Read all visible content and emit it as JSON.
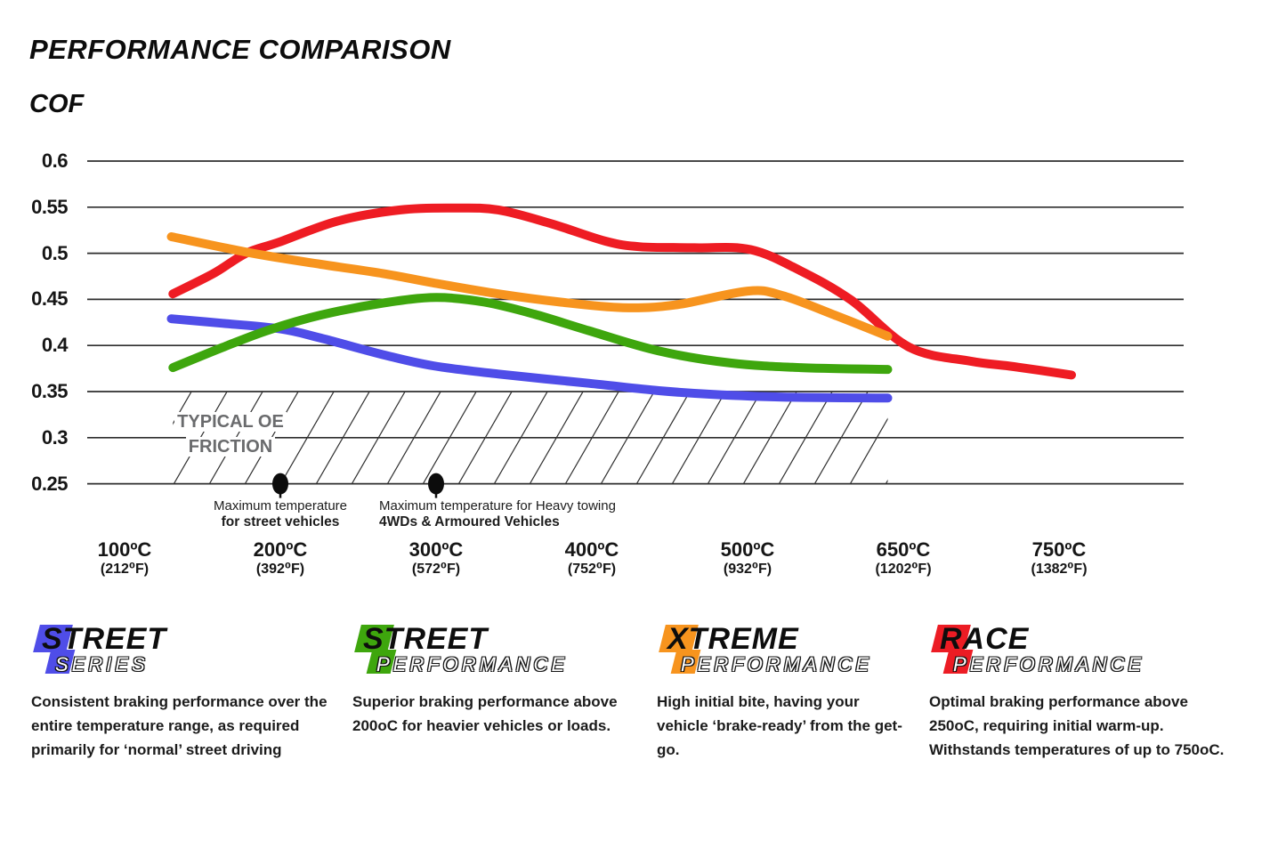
{
  "header": {
    "title": "PERFORMANCE COMPARISON",
    "axis_label": "COF"
  },
  "chart_data": {
    "type": "line",
    "title": "PERFORMANCE COMPARISON",
    "ylabel": "COF",
    "ylim": [
      0.25,
      0.6
    ],
    "grid": "horizontal",
    "legend_position": "bottom",
    "y_ticks": [
      {
        "label": "0.6",
        "value": 0.6
      },
      {
        "label": "0.55",
        "value": 0.55
      },
      {
        "label": "0.5",
        "value": 0.5
      },
      {
        "label": "0.45",
        "value": 0.45
      },
      {
        "label": "0.4",
        "value": 0.4
      },
      {
        "label": "0.35",
        "value": 0.35
      },
      {
        "label": "0.3",
        "value": 0.3
      },
      {
        "label": "0.25",
        "value": 0.25
      }
    ],
    "x_ticks": [
      {
        "temp": 100,
        "label": "100ºC",
        "sublabel": "(212⁰F)"
      },
      {
        "temp": 200,
        "label": "200ºC",
        "sublabel": "(392⁰F)"
      },
      {
        "temp": 300,
        "label": "300ºC",
        "sublabel": "(572⁰F)"
      },
      {
        "temp": 400,
        "label": "400ºC",
        "sublabel": "(752⁰F)"
      },
      {
        "temp": 500,
        "label": "500ºC",
        "sublabel": "(932⁰F)"
      },
      {
        "temp": 650,
        "label": "650ºC",
        "sublabel": "(1202⁰F)"
      },
      {
        "temp": 750,
        "label": "750ºC",
        "sublabel": "(1382⁰F)"
      }
    ],
    "series": [
      {
        "name": "Race Performance",
        "color": "#EE1C23",
        "points": [
          [
            131,
            0.456
          ],
          [
            157,
            0.478
          ],
          [
            178,
            0.5
          ],
          [
            199,
            0.512
          ],
          [
            237,
            0.535
          ],
          [
            277,
            0.547
          ],
          [
            311,
            0.549
          ],
          [
            340,
            0.547
          ],
          [
            374,
            0.532
          ],
          [
            409,
            0.513
          ],
          [
            431,
            0.507
          ],
          [
            466,
            0.506
          ],
          [
            503,
            0.504
          ],
          [
            551,
            0.481
          ],
          [
            600,
            0.449
          ],
          [
            654,
            0.398
          ],
          [
            693,
            0.383
          ],
          [
            721,
            0.377
          ],
          [
            758,
            0.368
          ]
        ]
      },
      {
        "name": "Street Series",
        "color": "#4F4DE8",
        "points": [
          [
            130,
            0.429
          ],
          [
            163,
            0.424
          ],
          [
            200,
            0.418
          ],
          [
            226,
            0.408
          ],
          [
            266,
            0.39
          ],
          [
            298,
            0.378
          ],
          [
            340,
            0.369
          ],
          [
            398,
            0.359
          ],
          [
            443,
            0.351
          ],
          [
            477,
            0.347
          ],
          [
            534,
            0.344
          ],
          [
            635,
            0.343
          ]
        ]
      },
      {
        "name": "Street Performance",
        "color": "#3EA60D",
        "points": [
          [
            131,
            0.376
          ],
          [
            163,
            0.398
          ],
          [
            193,
            0.417
          ],
          [
            226,
            0.433
          ],
          [
            266,
            0.446
          ],
          [
            300,
            0.452
          ],
          [
            331,
            0.447
          ],
          [
            363,
            0.434
          ],
          [
            398,
            0.416
          ],
          [
            443,
            0.394
          ],
          [
            489,
            0.381
          ],
          [
            551,
            0.376
          ],
          [
            635,
            0.374
          ]
        ]
      },
      {
        "name": "Xtreme Performance",
        "color": "#F7941E",
        "points": [
          [
            130,
            0.518
          ],
          [
            182,
            0.5
          ],
          [
            226,
            0.488
          ],
          [
            266,
            0.478
          ],
          [
            298,
            0.468
          ],
          [
            340,
            0.456
          ],
          [
            380,
            0.447
          ],
          [
            420,
            0.441
          ],
          [
            454,
            0.444
          ],
          [
            500,
            0.459
          ],
          [
            534,
            0.454
          ],
          [
            586,
            0.432
          ],
          [
            635,
            0.41
          ]
        ]
      }
    ],
    "oe_region": {
      "label_line1": "TYPICAL OE",
      "label_line2": "FRICTION",
      "temp_start": 131,
      "temp_end": 635,
      "cof_min": 0.25,
      "cof_max": 0.35
    },
    "markers": [
      {
        "temp": 200,
        "cof": 0.25,
        "label_line1": "Maximum temperature",
        "label_line2": "for street vehicles"
      },
      {
        "temp": 300,
        "cof": 0.25,
        "label_line1": "Maximum temperature for Heavy towing",
        "label_line2": "4WDs & Armoured Vehicles"
      }
    ]
  },
  "legend": [
    {
      "word1": "STREET",
      "word2": "SERIES",
      "color": "#4F4DE8",
      "description": "Consistent braking performance over the entire temperature range, as required primarily for ‘normal’ street driving"
    },
    {
      "word1": "STREET",
      "word2": "PERFORMANCE",
      "color": "#3EA60D",
      "description": "Superior braking performance above 200oC for heavier vehicles or loads."
    },
    {
      "word1": "XTREME",
      "word2": "PERFORMANCE",
      "color": "#F7941E",
      "description": "High initial bite, having your vehicle ‘brake-ready’ from the get-go."
    },
    {
      "word1": "RACE",
      "word2": "PERFORMANCE",
      "color": "#EC1C24",
      "description": "Optimal braking performance above 250oC, requiring initial warm-up. Withstands temperatures of up to 750oC."
    }
  ]
}
